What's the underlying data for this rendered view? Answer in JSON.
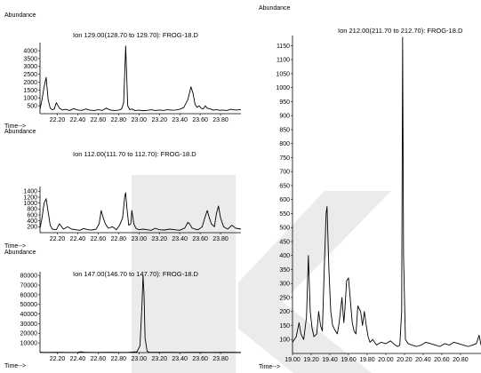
{
  "chart_data": [
    {
      "type": "line",
      "title": "Ion 129.00(128.70 to 129.70): FROG-18.D",
      "ylabel": "Abundance",
      "xlabel": "Time-->",
      "xlim": [
        22.03,
        24.0
      ],
      "ylim": [
        0,
        4400
      ],
      "xticks": [
        "22.20",
        "22.40",
        "22.60",
        "22.80",
        "23.00",
        "23.20",
        "23.40",
        "23.60",
        "23.80"
      ],
      "yticks": [
        "500",
        "1000",
        "1500",
        "2000",
        "2500",
        "3000",
        "3500",
        "4000"
      ],
      "x": [
        22.03,
        22.05,
        22.07,
        22.09,
        22.11,
        22.13,
        22.15,
        22.17,
        22.19,
        22.22,
        22.25,
        22.28,
        22.32,
        22.36,
        22.4,
        22.44,
        22.48,
        22.52,
        22.56,
        22.6,
        22.64,
        22.68,
        22.72,
        22.76,
        22.8,
        22.83,
        22.85,
        22.86,
        22.87,
        22.88,
        22.89,
        22.91,
        22.93,
        22.96,
        23.0,
        23.04,
        23.08,
        23.12,
        23.16,
        23.2,
        23.24,
        23.28,
        23.32,
        23.36,
        23.4,
        23.44,
        23.48,
        23.51,
        23.53,
        23.55,
        23.57,
        23.59,
        23.61,
        23.63,
        23.65,
        23.67,
        23.7,
        23.73,
        23.76,
        23.79,
        23.82,
        23.86,
        23.9,
        23.95,
        24.0
      ],
      "values": [
        300,
        900,
        1700,
        2300,
        900,
        350,
        250,
        300,
        700,
        350,
        230,
        280,
        200,
        320,
        230,
        210,
        300,
        220,
        200,
        250,
        210,
        350,
        230,
        200,
        220,
        300,
        700,
        2500,
        4300,
        2400,
        500,
        250,
        300,
        200,
        220,
        190,
        210,
        250,
        200,
        230,
        210,
        250,
        220,
        230,
        280,
        400,
        900,
        1700,
        1300,
        600,
        400,
        500,
        350,
        300,
        500,
        350,
        300,
        220,
        260,
        210,
        230,
        200,
        280,
        230,
        260
      ],
      "series_color": "#000000"
    },
    {
      "type": "line",
      "title": "Ion 112.00(111.70 to 112.70): FROG-18.D",
      "ylabel": "Abundance",
      "xlabel": "Time-->",
      "xlim": [
        22.03,
        24.0
      ],
      "ylim": [
        0,
        1500
      ],
      "xticks": [
        "22.20",
        "22.40",
        "22.60",
        "22.80",
        "23.00",
        "23.20",
        "23.40",
        "23.60",
        "23.80"
      ],
      "yticks": [
        "200",
        "400",
        "600",
        "800",
        "1000",
        "1200",
        "1400"
      ],
      "x": [
        22.03,
        22.05,
        22.07,
        22.09,
        22.11,
        22.13,
        22.15,
        22.19,
        22.22,
        22.26,
        22.3,
        22.34,
        22.38,
        22.42,
        22.46,
        22.5,
        22.54,
        22.58,
        22.61,
        22.63,
        22.65,
        22.67,
        22.7,
        22.74,
        22.78,
        22.81,
        22.84,
        22.86,
        22.87,
        22.88,
        22.9,
        22.92,
        22.93,
        22.95,
        22.97,
        23.0,
        23.04,
        23.08,
        23.12,
        23.16,
        23.2,
        23.25,
        23.3,
        23.35,
        23.4,
        23.45,
        23.48,
        23.5,
        23.52,
        23.55,
        23.58,
        23.62,
        23.65,
        23.67,
        23.69,
        23.71,
        23.74,
        23.76,
        23.78,
        23.8,
        23.83,
        23.87,
        23.91,
        23.95,
        24.0
      ],
      "values": [
        150,
        500,
        1000,
        1150,
        700,
        250,
        120,
        100,
        300,
        120,
        200,
        120,
        100,
        80,
        140,
        100,
        90,
        120,
        300,
        750,
        500,
        300,
        150,
        200,
        100,
        250,
        500,
        1200,
        1350,
        900,
        250,
        300,
        750,
        300,
        150,
        100,
        120,
        100,
        80,
        150,
        100,
        90,
        120,
        100,
        80,
        160,
        350,
        280,
        160,
        120,
        100,
        200,
        550,
        750,
        500,
        300,
        200,
        650,
        900,
        500,
        200,
        120,
        250,
        150,
        120
      ],
      "series_color": "#000000"
    },
    {
      "type": "line",
      "title": "Ion 147.00(146.70 to 147.70): FROG-18.D",
      "ylabel": "Abundance",
      "xlabel": "Time-->",
      "xlim": [
        22.03,
        24.0
      ],
      "ylim": [
        0,
        82000
      ],
      "xticks": [
        "22.20",
        "22.40",
        "22.60",
        "22.80",
        "23.00",
        "23.20",
        "23.40",
        "23.60",
        "23.80"
      ],
      "yticks": [
        "10000",
        "20000",
        "30000",
        "40000",
        "50000",
        "60000",
        "70000",
        "80000"
      ],
      "x": [
        22.03,
        22.1,
        22.2,
        22.3,
        22.4,
        22.43,
        22.46,
        22.5,
        22.6,
        22.7,
        22.8,
        22.9,
        22.98,
        23.01,
        23.03,
        23.04,
        23.05,
        23.06,
        23.08,
        23.1,
        23.2,
        23.3,
        23.4,
        23.5,
        23.6,
        23.7,
        23.8,
        23.9,
        24.0
      ],
      "values": [
        300,
        200,
        250,
        200,
        300,
        900,
        400,
        250,
        200,
        250,
        200,
        300,
        800,
        7000,
        50000,
        80000,
        60000,
        15000,
        1500,
        400,
        300,
        250,
        200,
        300,
        250,
        200,
        300,
        250,
        200
      ],
      "series_color": "#000000"
    },
    {
      "type": "line",
      "title": "Ion 212.00(211.70 to 212.70): FROG-18.D",
      "ylabel": "Abundance",
      "xlabel": "Time-->",
      "xlim": [
        19.0,
        21.02
      ],
      "ylim": [
        50,
        1180
      ],
      "xticks": [
        "19.00",
        "19.20",
        "19.40",
        "19.60",
        "19.80",
        "20.00",
        "20.20",
        "20.40",
        "20.60",
        "20.80"
      ],
      "yticks": [
        "100",
        "150",
        "200",
        "250",
        "300",
        "350",
        "400",
        "450",
        "500",
        "550",
        "600",
        "650",
        "700",
        "750",
        "800",
        "850",
        "900",
        "950",
        "1000",
        "1050",
        "1100",
        "1150"
      ],
      "x": [
        19.0,
        19.04,
        19.07,
        19.09,
        19.12,
        19.15,
        19.17,
        19.19,
        19.21,
        19.23,
        19.26,
        19.28,
        19.3,
        19.32,
        19.34,
        19.36,
        19.37,
        19.39,
        19.41,
        19.43,
        19.46,
        19.48,
        19.5,
        19.53,
        19.55,
        19.56,
        19.58,
        19.6,
        19.62,
        19.64,
        19.66,
        19.68,
        19.7,
        19.73,
        19.75,
        19.77,
        19.79,
        19.81,
        19.83,
        19.86,
        19.9,
        19.95,
        20.0,
        20.05,
        20.1,
        20.13,
        20.15,
        20.17,
        20.18,
        20.19,
        20.21,
        20.24,
        20.28,
        20.33,
        20.38,
        20.43,
        20.48,
        20.53,
        20.58,
        20.63,
        20.68,
        20.73,
        20.78,
        20.83,
        20.88,
        20.93,
        20.97,
        21.0,
        21.02
      ],
      "values": [
        90,
        110,
        160,
        120,
        100,
        180,
        400,
        200,
        140,
        110,
        120,
        200,
        150,
        130,
        350,
        550,
        575,
        350,
        200,
        150,
        130,
        120,
        160,
        250,
        160,
        200,
        310,
        320,
        240,
        160,
        130,
        120,
        220,
        200,
        150,
        200,
        150,
        110,
        90,
        100,
        80,
        90,
        85,
        95,
        80,
        75,
        80,
        200,
        1180,
        400,
        100,
        85,
        80,
        75,
        80,
        90,
        85,
        80,
        75,
        85,
        80,
        90,
        85,
        80,
        75,
        80,
        85,
        115,
        80
      ],
      "series_color": "#000000"
    }
  ],
  "labels": {
    "abundance": "Abundance",
    "time": "Time-->"
  }
}
